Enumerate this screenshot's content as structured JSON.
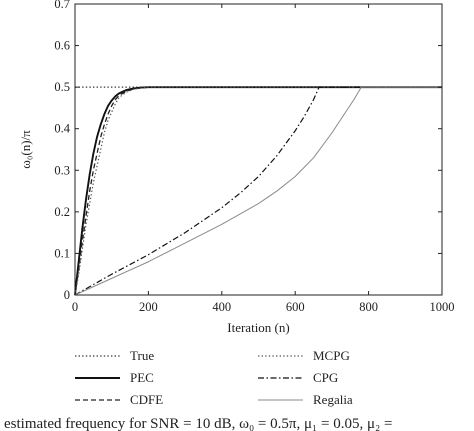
{
  "chart_data": {
    "type": "line",
    "ylabel": "ω₀(n)/π",
    "xlabel": "Iteration (n)",
    "xlim": [
      0,
      1000
    ],
    "ylim": [
      0,
      0.7
    ],
    "xticks": [
      0,
      200,
      400,
      600,
      800,
      1000
    ],
    "yticks": [
      0,
      0.1,
      0.2,
      0.3,
      0.4,
      0.5,
      0.6,
      0.7
    ],
    "xtick_labels": [
      "0",
      "200",
      "400",
      "600",
      "800",
      "1000"
    ],
    "ytick_labels": [
      "0",
      "0.1",
      "0.2",
      "0.3",
      "0.4",
      "0.5",
      "0.6",
      "0.7"
    ],
    "grid": false,
    "legend_position": "below plot, two columns",
    "series": [
      {
        "name": "True",
        "style": "dotted",
        "color": "#333333",
        "x": [
          0,
          1000
        ],
        "y": [
          0.5,
          0.5
        ]
      },
      {
        "name": "PEC",
        "style": "solid-thick",
        "color": "#111111",
        "x": [
          0,
          10,
          20,
          30,
          40,
          50,
          60,
          70,
          80,
          90,
          100,
          110,
          120,
          140,
          160,
          180,
          200,
          250,
          300,
          400,
          500,
          600,
          700,
          800,
          900,
          1000
        ],
        "y": [
          0,
          0.08,
          0.16,
          0.23,
          0.29,
          0.34,
          0.38,
          0.41,
          0.435,
          0.455,
          0.468,
          0.478,
          0.485,
          0.493,
          0.497,
          0.499,
          0.5,
          0.5,
          0.5,
          0.5,
          0.5,
          0.5,
          0.5,
          0.5,
          0.5,
          0.5
        ]
      },
      {
        "name": "CDFE",
        "style": "dashed",
        "color": "#222222",
        "x": [
          0,
          10,
          20,
          30,
          40,
          50,
          60,
          70,
          80,
          90,
          100,
          110,
          120,
          140,
          160,
          180,
          200,
          250,
          300,
          400,
          500,
          600,
          700,
          800,
          900,
          1000
        ],
        "y": [
          0,
          0.06,
          0.13,
          0.19,
          0.25,
          0.3,
          0.34,
          0.38,
          0.41,
          0.435,
          0.455,
          0.47,
          0.48,
          0.49,
          0.496,
          0.498,
          0.5,
          0.5,
          0.5,
          0.5,
          0.5,
          0.5,
          0.5,
          0.5,
          0.5,
          0.5
        ]
      },
      {
        "name": "MCPG",
        "style": "dotted",
        "color": "#555555",
        "x": [
          0,
          10,
          20,
          30,
          40,
          50,
          60,
          70,
          80,
          90,
          100,
          110,
          120,
          140,
          160,
          180,
          200,
          250,
          300,
          400,
          500,
          600,
          700,
          800,
          900,
          1000
        ],
        "y": [
          0,
          0.05,
          0.11,
          0.17,
          0.22,
          0.27,
          0.31,
          0.35,
          0.39,
          0.42,
          0.44,
          0.46,
          0.475,
          0.488,
          0.495,
          0.498,
          0.5,
          0.5,
          0.5,
          0.5,
          0.5,
          0.5,
          0.5,
          0.5,
          0.5,
          0.5
        ]
      },
      {
        "name": "CPG",
        "style": "dash-dot",
        "color": "#111111",
        "x": [
          0,
          100,
          200,
          300,
          400,
          450,
          500,
          550,
          600,
          625,
          650,
          665,
          680,
          750,
          800,
          900,
          1000
        ],
        "y": [
          0,
          0.05,
          0.097,
          0.15,
          0.21,
          0.245,
          0.285,
          0.335,
          0.395,
          0.43,
          0.47,
          0.5,
          0.5,
          0.5,
          0.5,
          0.5,
          0.5
        ]
      },
      {
        "name": "Regalia",
        "style": "solid-thin",
        "color": "#8a8a8a",
        "x": [
          0,
          100,
          200,
          300,
          400,
          500,
          550,
          600,
          650,
          700,
          730,
          760,
          780,
          790,
          800,
          900,
          1000
        ],
        "y": [
          0,
          0.04,
          0.08,
          0.125,
          0.17,
          0.22,
          0.25,
          0.285,
          0.33,
          0.39,
          0.43,
          0.47,
          0.5,
          0.5,
          0.5,
          0.5,
          0.5
        ]
      }
    ]
  },
  "caption": "estimated frequency for SNR = 10 dB, ω₀ = 0.5π, μ₁ = 0.05, μ₂ ="
}
